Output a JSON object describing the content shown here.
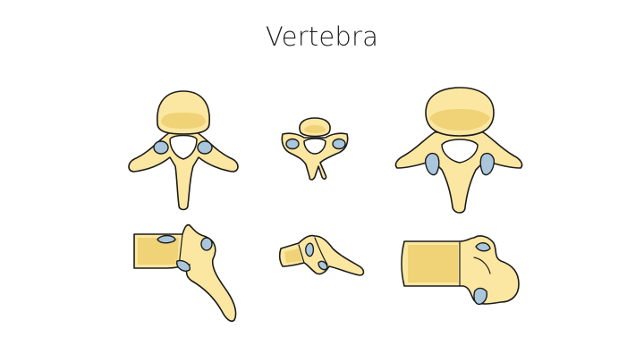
{
  "slide": {
    "title": "Vertebra"
  },
  "colors": {
    "bone": "#fbe7a1",
    "bone_shade": "#f0d277",
    "cartilage": "#a9c6dc",
    "outline": "#1c1c1c",
    "background": "#ffffff",
    "title_text": "#222222"
  },
  "illustrations": [
    {
      "name": "thoracic-vertebra-top-view",
      "icon": "vertebra-superior-view"
    },
    {
      "name": "cervical-vertebra-top-view",
      "icon": "vertebra-superior-view"
    },
    {
      "name": "lumbar-vertebra-top-view",
      "icon": "vertebra-superior-view"
    },
    {
      "name": "thoracic-vertebra-side-view",
      "icon": "vertebra-lateral-view"
    },
    {
      "name": "cervical-vertebra-side-view",
      "icon": "vertebra-lateral-view"
    },
    {
      "name": "lumbar-vertebra-side-view",
      "icon": "vertebra-lateral-view"
    }
  ]
}
